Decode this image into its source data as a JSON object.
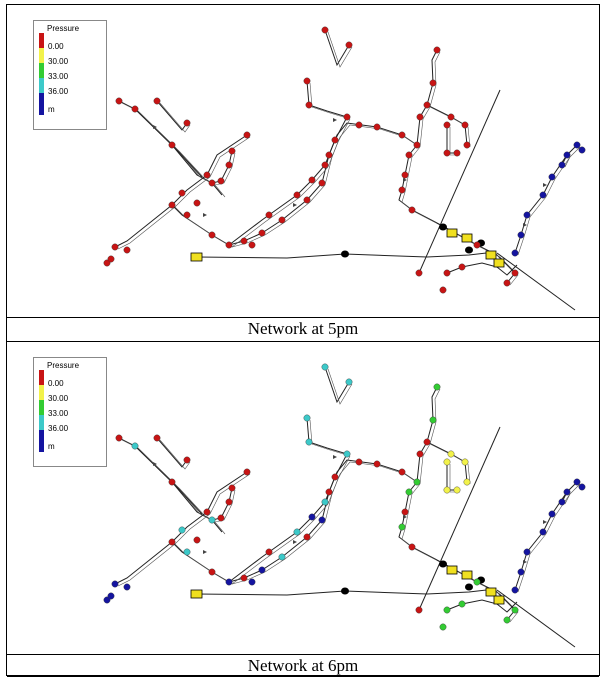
{
  "panels": [
    {
      "caption": "Network at 5pm",
      "legend": {
        "title": "Pressure",
        "levels": [
          "0.00",
          "30.00",
          "33.00",
          "36.00"
        ],
        "unit": "m"
      }
    },
    {
      "caption": "Network at 6pm",
      "legend": {
        "title": "Pressure",
        "levels": [
          "0.00",
          "30.00",
          "33.00",
          "36.00"
        ],
        "unit": "m"
      }
    }
  ],
  "colors": {
    "below_0": "#c81414",
    "from_0_to_30": "#f2f24a",
    "from_30_to_33": "#33cc33",
    "from_33_to_36": "#3cc9c9",
    "above_36": "#1414a0",
    "pipe": "#222222",
    "tank": "#f0e020",
    "valve": "#000000"
  }
}
